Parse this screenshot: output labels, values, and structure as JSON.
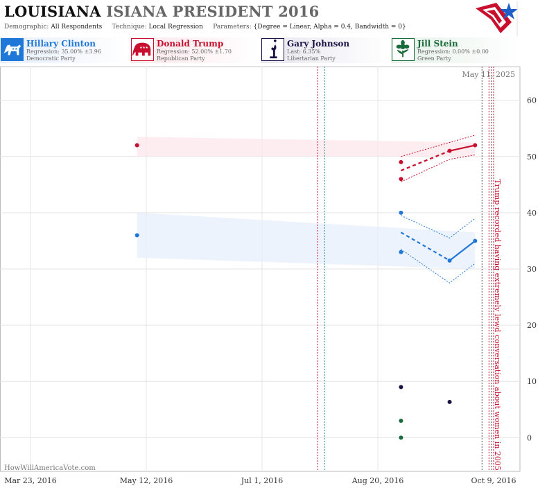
{
  "header": {
    "title_part1": "LOUISIANA",
    "title_part2": "ISIANA PRESIDENT 2016",
    "demographic_label": "Demographic:",
    "demographic_value": "All Respondents",
    "technique_label": "Technique:",
    "technique_value": "Local Regression",
    "parameters_label": "Parameters:",
    "parameters_value": "{Degree = Linear, Alpha = 0.4, Bandwidth = 0}"
  },
  "candidates": [
    {
      "name": "Hillary Clinton",
      "stat": "Regression: 35.00% ±3.96",
      "party": "Democratic Party",
      "color": "#1f77d8",
      "icon": "donkey-icon"
    },
    {
      "name": "Donald Trump",
      "stat": "Regression: 52.00% ±1.70",
      "party": "Republican Party",
      "color": "#c8102e",
      "icon": "elephant-icon"
    },
    {
      "name": "Gary Johnson",
      "stat": "Last: 6.35%",
      "party": "Libertarian Party",
      "color": "#1a1446",
      "icon": "liberty-statue-icon"
    },
    {
      "name": "Jill Stein",
      "stat": "Regression: 0.00% ±0.00",
      "party": "Green Party",
      "color": "#1a6b3a",
      "icon": "flower-icon"
    }
  ],
  "chart_data": {
    "type": "scatter",
    "date_label": "May 11, 2025",
    "watermark": "HowWillAmericaVote.com",
    "annotation": "Trump recorded having extremely lewd conversation about women in 2005",
    "x_ticks": [
      "Mar 23, 2016",
      "May 12, 2016",
      "Jul 1, 2016",
      "Aug 20, 2016",
      "Oct 9, 2016"
    ],
    "y_ticks": [
      0,
      10,
      20,
      30,
      40,
      50,
      60
    ],
    "ylim": [
      -6,
      66
    ],
    "grid": true,
    "series": [
      {
        "name": "Hillary Clinton",
        "color": "#1f77d8",
        "points": [
          [
            "2016-05-08",
            36
          ],
          [
            "2016-08-30",
            40
          ],
          [
            "2016-08-30",
            33
          ],
          [
            "2016-09-20",
            31.5
          ],
          [
            "2016-10-01",
            35
          ]
        ],
        "trend": [
          [
            "2016-09-20",
            31.5
          ],
          [
            "2016-10-01",
            35
          ]
        ],
        "trend_dashed": [
          [
            "2016-08-30",
            36.5
          ],
          [
            "2016-09-20",
            31.5
          ]
        ]
      },
      {
        "name": "Donald Trump",
        "color": "#c8102e",
        "points": [
          [
            "2016-05-08",
            52
          ],
          [
            "2016-08-30",
            49
          ],
          [
            "2016-08-30",
            46
          ],
          [
            "2016-09-20",
            51
          ],
          [
            "2016-10-01",
            52
          ]
        ],
        "trend": [
          [
            "2016-09-20",
            51
          ],
          [
            "2016-10-01",
            52
          ]
        ],
        "trend_dashed": [
          [
            "2016-08-30",
            47.5
          ],
          [
            "2016-09-20",
            51
          ]
        ]
      },
      {
        "name": "Gary Johnson",
        "color": "#1a1446",
        "points": [
          [
            "2016-08-30",
            9
          ],
          [
            "2016-09-20",
            6.35
          ]
        ]
      },
      {
        "name": "Jill Stein",
        "color": "#1a6b3a",
        "points": [
          [
            "2016-08-30",
            3
          ],
          [
            "2016-08-30",
            0
          ]
        ]
      }
    ]
  }
}
